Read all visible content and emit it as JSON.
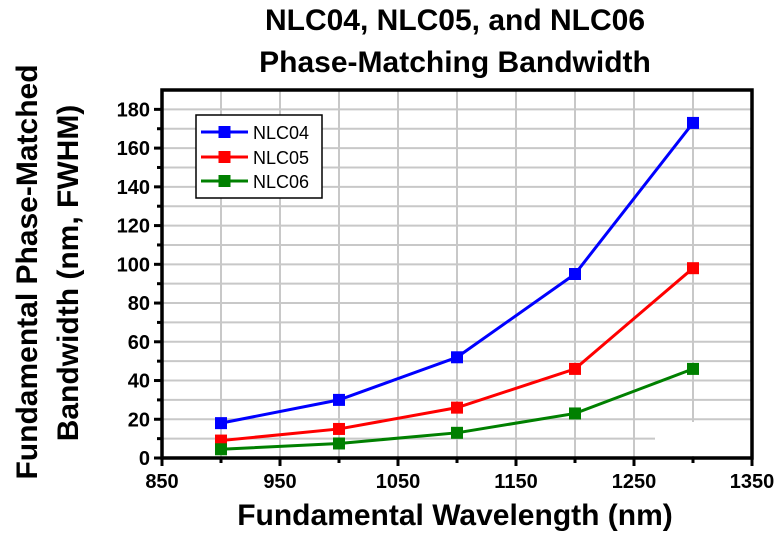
{
  "chart_data": {
    "type": "line",
    "title": [
      "NLC04, NLC05, and NLC06",
      "Phase-Matching Bandwidth"
    ],
    "xlabel": "Fundamental Wavelength (nm)",
    "ylabel": [
      "Fundamental Phase-Matched",
      "Bandwidth (nm, FWHM)"
    ],
    "x": [
      900,
      1000,
      1100,
      1200,
      1300
    ],
    "series": [
      {
        "name": "NLC04",
        "color": "#0000ff",
        "values": [
          18,
          30,
          52,
          95,
          173
        ]
      },
      {
        "name": "NLC05",
        "color": "#ff0000",
        "values": [
          9,
          15,
          26,
          46,
          98
        ]
      },
      {
        "name": "NLC06",
        "color": "#008000",
        "values": [
          4.5,
          7.5,
          13,
          23,
          46
        ]
      }
    ],
    "xlim": [
      850,
      1350
    ],
    "ylim": [
      0,
      190
    ],
    "xticks": [
      850,
      950,
      1050,
      1150,
      1250,
      1350
    ],
    "xticks_minor": [
      900,
      1000,
      1100,
      1200,
      1300
    ],
    "yticks": [
      0,
      20,
      40,
      60,
      80,
      100,
      120,
      140,
      160,
      180
    ],
    "yticks_minor": [
      10,
      30,
      50,
      70,
      90,
      110,
      130,
      150,
      170
    ],
    "grid": true,
    "grid_color": "#c8c8c8",
    "legend": {
      "position": "top-left",
      "entries": [
        "NLC04",
        "NLC05",
        "NLC06"
      ]
    },
    "marker": "square"
  }
}
